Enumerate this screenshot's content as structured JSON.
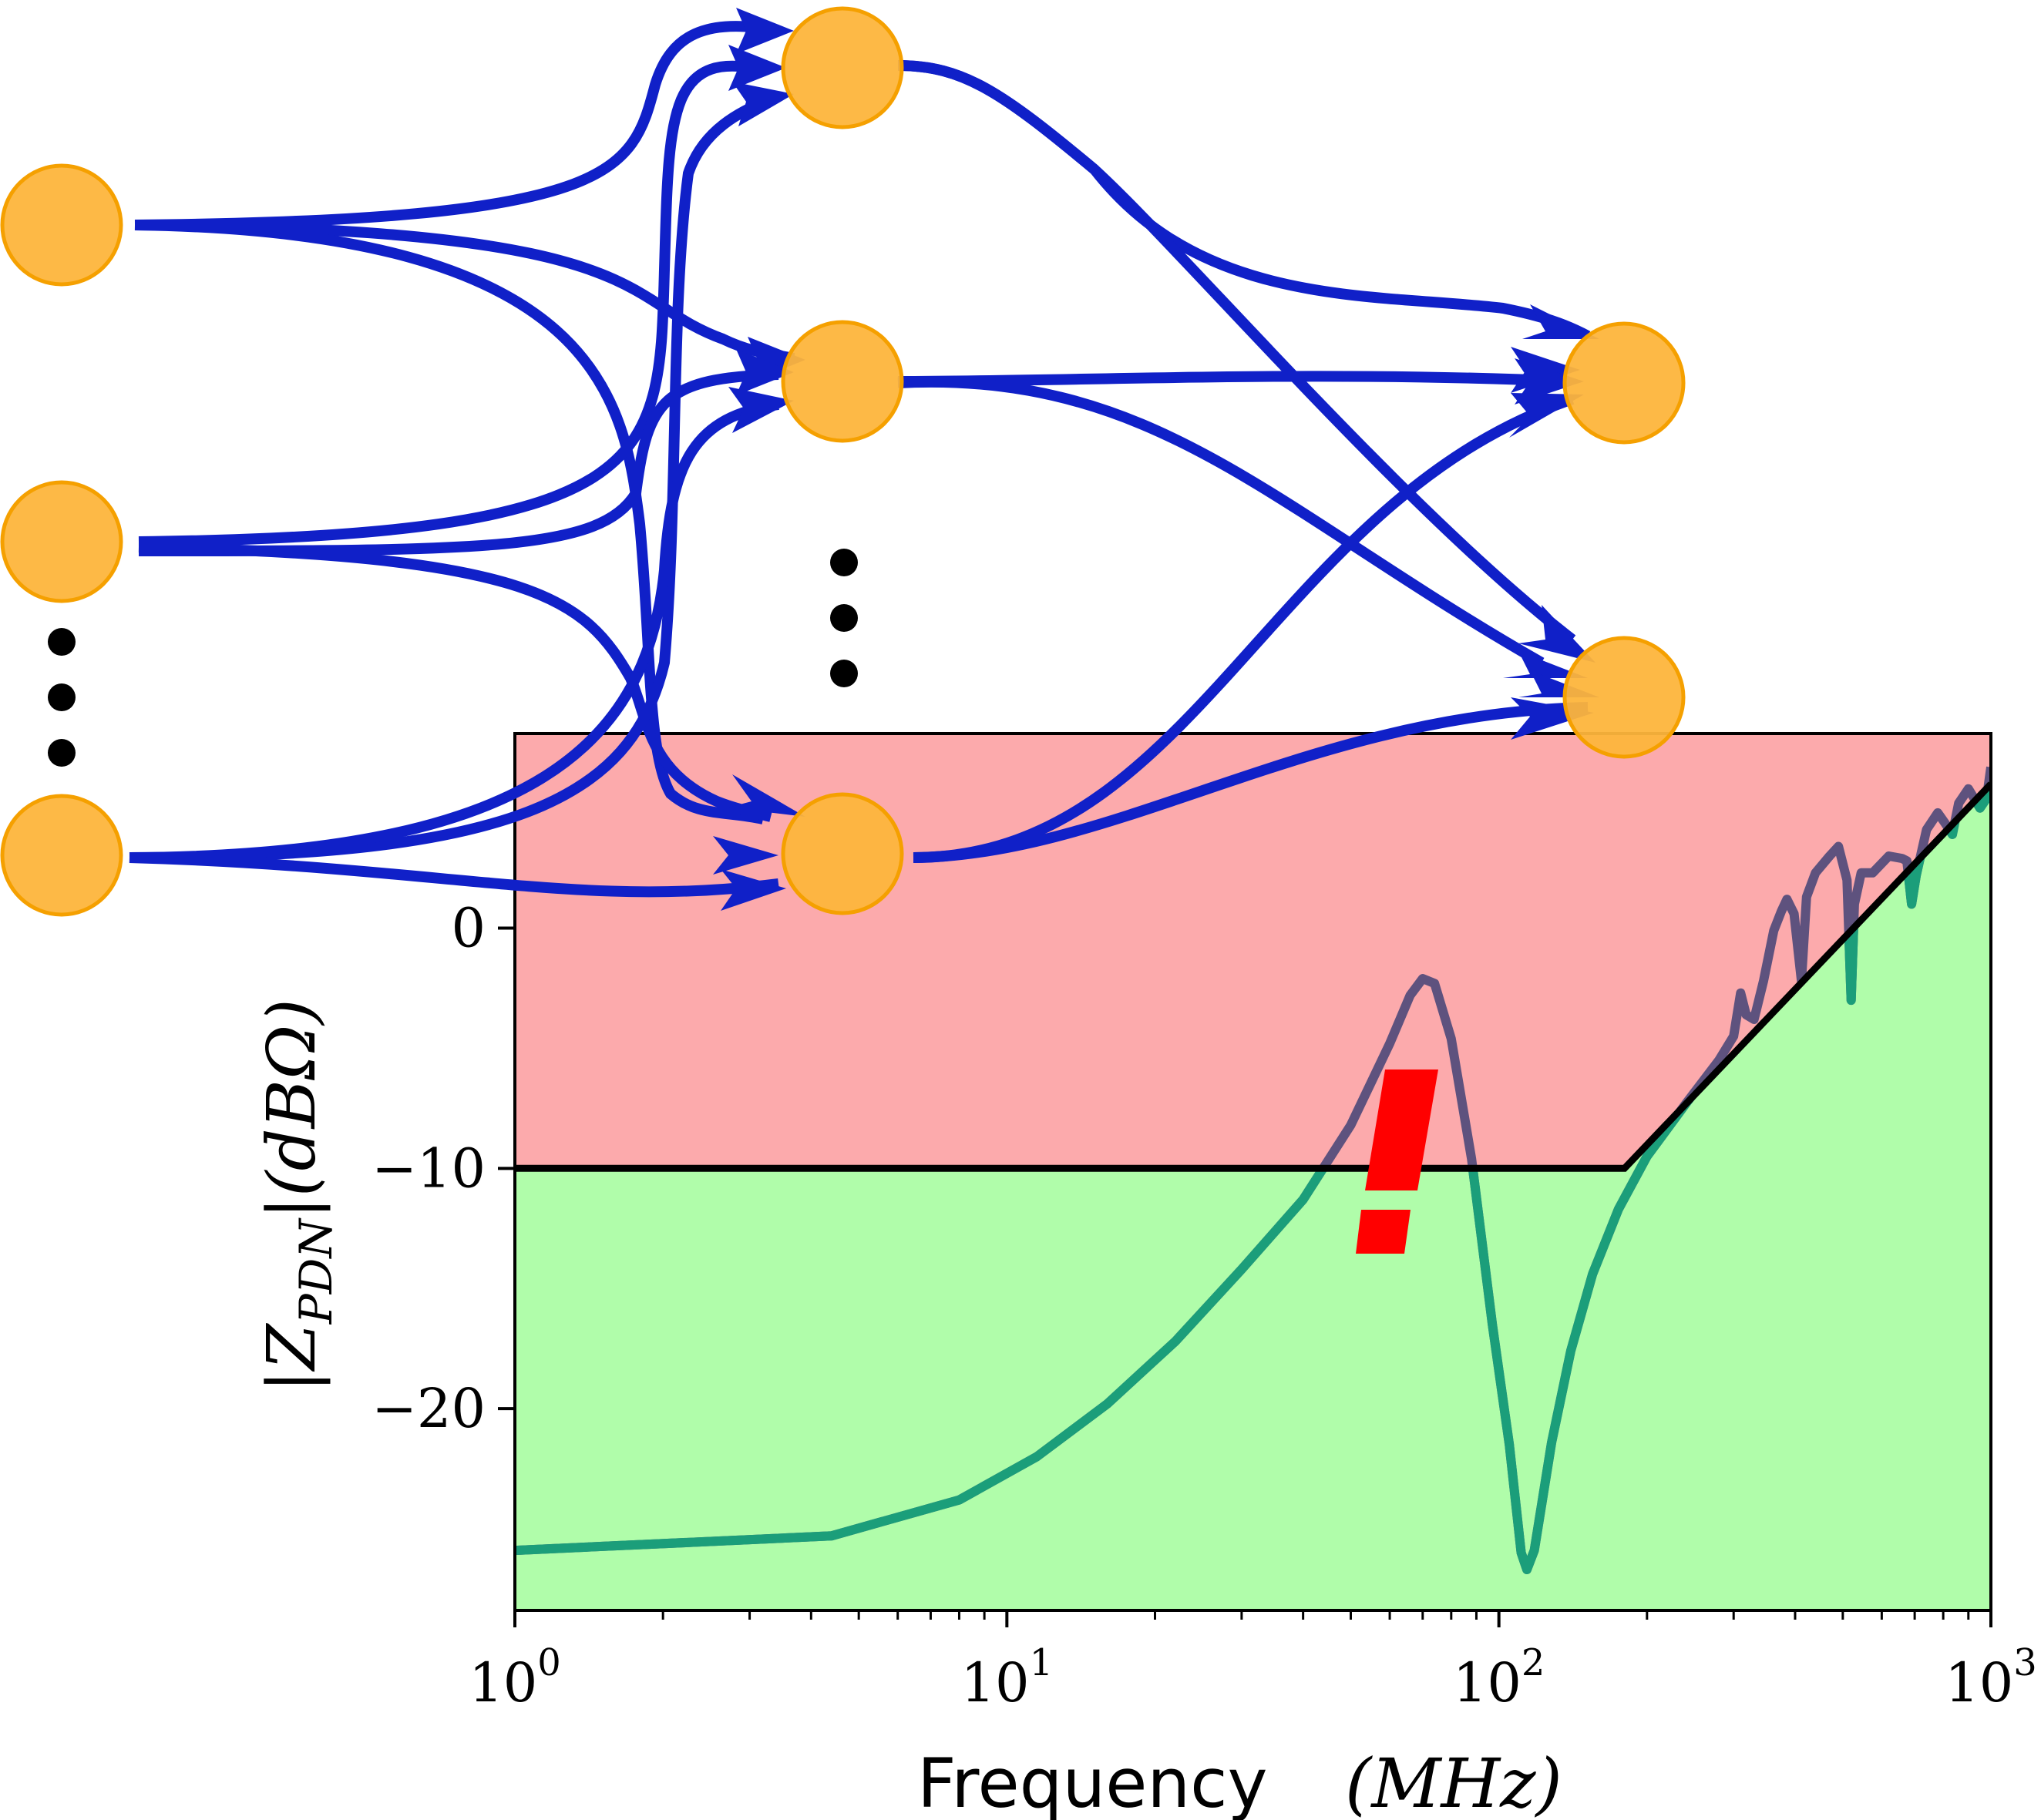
{
  "colors": {
    "node_fill": "#FDB53C",
    "node_stroke": "#F5A000",
    "edge": "#1020C8",
    "danger_region": "#FCAAAC",
    "safe_region": "#B0FDAA",
    "impedance_ok": "#1B9E7A",
    "impedance_violating": "#5E527E",
    "target_mask": "#000000",
    "warning_mark": "#FF0000"
  },
  "network": {
    "layers": [
      {
        "visible_nodes": 3,
        "ellipsis": true
      },
      {
        "visible_nodes": 3,
        "ellipsis": true
      },
      {
        "visible_nodes": 2,
        "ellipsis": false
      }
    ],
    "ellipsis_glyph": "⋮"
  },
  "warning_icon": {
    "name": "exclamation-mark",
    "glyph": "!"
  },
  "chart_data": {
    "type": "line",
    "xlabel": "Frequency (MHz)",
    "xlabel_parts": {
      "text": "Frequency",
      "unit": "(MHz)"
    },
    "ylabel": "|Z_PDN|(dBΩ)",
    "ylabel_parts": {
      "main": "|Z",
      "sub": "PDN",
      "unit": "|(dBΩ)"
    },
    "x_scale": "log",
    "xlim": [
      1,
      1000
    ],
    "ylim": [
      -28.4,
      8.1
    ],
    "x_ticks": [
      {
        "value": 1,
        "base": "10",
        "exp": "0"
      },
      {
        "value": 10,
        "base": "10",
        "exp": "1"
      },
      {
        "value": 100,
        "base": "10",
        "exp": "2"
      },
      {
        "value": 1000,
        "base": "10",
        "exp": "3"
      }
    ],
    "y_ticks": [
      {
        "value": 0,
        "label": "0"
      },
      {
        "value": -10,
        "label": "−10"
      },
      {
        "value": -20,
        "label": "−20"
      }
    ],
    "grid": false,
    "series": [
      {
        "role": "target_impedance_mask",
        "points": [
          [
            1,
            -10
          ],
          [
            180,
            -10
          ],
          [
            1000,
            6
          ]
        ]
      },
      {
        "role": "pdn_impedance",
        "points": [
          [
            1,
            -25.9
          ],
          [
            4.4,
            -25.3
          ],
          [
            8,
            -23.8
          ],
          [
            11.5,
            -22.0
          ],
          [
            16,
            -19.8
          ],
          [
            22,
            -17.2
          ],
          [
            30,
            -14.2
          ],
          [
            40,
            -11.3
          ],
          [
            50,
            -8.2
          ],
          [
            60,
            -4.8
          ],
          [
            66,
            -2.8
          ],
          [
            70,
            -2.1
          ],
          [
            74,
            -2.3
          ],
          [
            80,
            -4.6
          ],
          [
            88,
            -9.6
          ],
          [
            97,
            -16.5
          ],
          [
            105,
            -21.5
          ],
          [
            111,
            -26.0
          ],
          [
            114,
            -26.7
          ],
          [
            118,
            -25.9
          ],
          [
            128,
            -21.4
          ],
          [
            140,
            -17.6
          ],
          [
            155,
            -14.4
          ],
          [
            175,
            -11.7
          ],
          [
            200,
            -9.5
          ],
          [
            240,
            -7.3
          ],
          [
            280,
            -5.5
          ],
          [
            300,
            -4.5
          ],
          [
            310,
            -2.7
          ],
          [
            318,
            -3.6
          ],
          [
            330,
            -3.8
          ],
          [
            345,
            -2.2
          ],
          [
            362,
            -0.1
          ],
          [
            375,
            0.7
          ],
          [
            385,
            1.2
          ],
          [
            398,
            0.6
          ],
          [
            412,
            -2.2
          ],
          [
            422,
            1.3
          ],
          [
            440,
            2.3
          ],
          [
            470,
            3.0
          ],
          [
            490,
            3.4
          ],
          [
            510,
            2.0
          ],
          [
            520,
            -3.0
          ],
          [
            528,
            1.0
          ],
          [
            545,
            2.3
          ],
          [
            575,
            2.3
          ],
          [
            620,
            3.0
          ],
          [
            660,
            2.9
          ],
          [
            675,
            2.8
          ],
          [
            690,
            1.0
          ],
          [
            705,
            2.2
          ],
          [
            740,
            4.1
          ],
          [
            780,
            4.8
          ],
          [
            805,
            4.4
          ],
          [
            835,
            3.9
          ],
          [
            860,
            5.2
          ],
          [
            900,
            5.8
          ],
          [
            950,
            5.0
          ],
          [
            980,
            5.4
          ],
          [
            1000,
            6.7
          ]
        ]
      }
    ]
  }
}
